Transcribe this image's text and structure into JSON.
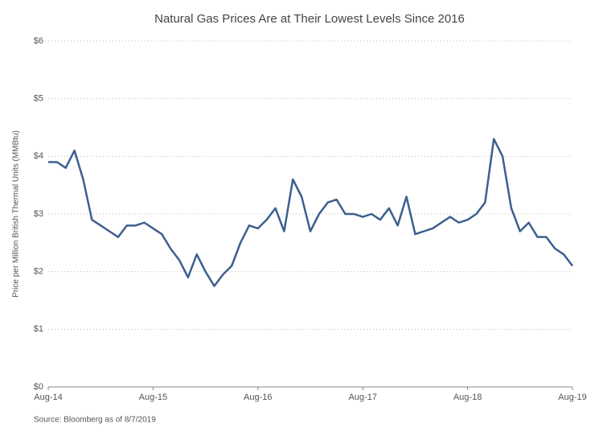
{
  "chart_data": {
    "type": "line",
    "title": "Natural Gas Prices Are at Their Lowest Levels Since 2016",
    "y_label": "Price per Million British Thermal Units (MMBtu)",
    "source": "Source: Bloomberg as of 8/7/2019",
    "categories": [
      "Aug-14",
      null,
      null,
      null,
      null,
      null,
      null,
      null,
      null,
      null,
      null,
      null,
      "Aug-15",
      null,
      null,
      null,
      null,
      null,
      null,
      null,
      null,
      null,
      null,
      null,
      "Aug-16",
      null,
      null,
      null,
      null,
      null,
      null,
      null,
      null,
      null,
      null,
      null,
      "Aug-17",
      null,
      null,
      null,
      null,
      null,
      null,
      null,
      null,
      null,
      null,
      null,
      "Aug-18",
      null,
      null,
      null,
      null,
      null,
      null,
      null,
      null,
      null,
      null,
      null,
      "Aug-19"
    ],
    "series": [
      {
        "color": "#3d5f8f",
        "values": [
          3.9,
          3.9,
          3.8,
          4.1,
          3.6,
          2.9,
          2.8,
          2.7,
          2.6,
          2.8,
          2.8,
          2.85,
          2.75,
          2.65,
          2.4,
          2.2,
          1.9,
          2.3,
          2.0,
          1.75,
          1.95,
          2.1,
          2.5,
          2.8,
          2.75,
          2.9,
          3.1,
          2.7,
          3.6,
          3.3,
          2.7,
          3.0,
          3.2,
          3.25,
          3.0,
          3.0,
          2.95,
          3.0,
          2.9,
          3.1,
          2.8,
          3.3,
          2.65,
          2.7,
          2.75,
          2.85,
          2.95,
          2.85,
          2.9,
          3.0,
          3.2,
          4.3,
          4.0,
          3.1,
          2.7,
          2.85,
          2.6,
          2.6,
          2.4,
          2.3,
          2.1
        ]
      }
    ],
    "ylim": [
      0,
      6
    ],
    "yticks": [
      {
        "value": 0,
        "label": "$0"
      },
      {
        "value": 1,
        "label": "$1"
      },
      {
        "value": 2,
        "label": "$2"
      },
      {
        "value": 3,
        "label": "$3"
      },
      {
        "value": 4,
        "label": "$4"
      },
      {
        "value": 5,
        "label": "$5"
      },
      {
        "value": 6,
        "label": "$6"
      }
    ],
    "grid": true
  }
}
